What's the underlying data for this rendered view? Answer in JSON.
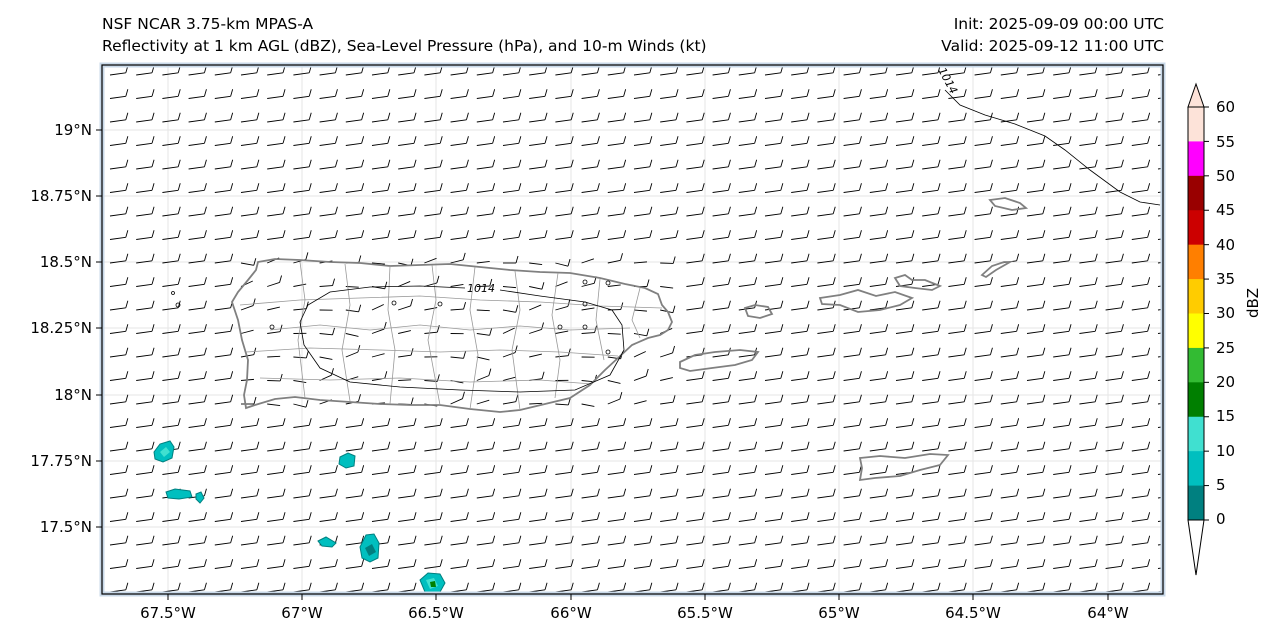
{
  "title": {
    "line1": "NSF NCAR 3.75-km MPAS-A",
    "line2": "Reflectivity at 1 km AGL (dBZ), Sea-Level Pressure (hPa), and 10-m Winds (kt)",
    "init": "Init: 2025-09-09 00:00 UTC",
    "valid": "Valid: 2025-09-12 11:00 UTC"
  },
  "map": {
    "lat_labels": [
      "19°N",
      "18.75°N",
      "18.5°N",
      "18.25°N",
      "18°N",
      "17.75°N",
      "17.5°N"
    ],
    "lon_labels": [
      "67.5°W",
      "67°W",
      "66.5°W",
      "66°W",
      "65.5°W",
      "65°W",
      "64.5°W",
      "64°W"
    ],
    "lon_range": [
      -67.75,
      -63.8
    ],
    "lat_range": [
      17.3,
      19.25
    ],
    "isobar_label_1": "1014",
    "isobar_label_2": "1014",
    "colors": {
      "coastline": "#808080",
      "isobar": "#000000",
      "frame_inner": "#c8d8e8"
    }
  },
  "colorbar": {
    "title": "dBZ",
    "ticks": [
      "60",
      "55",
      "50",
      "45",
      "40",
      "35",
      "30",
      "25",
      "20",
      "15",
      "10",
      "5",
      "0"
    ],
    "colors": [
      "#fde3d9",
      "#ff00ff",
      "#990000",
      "#cc0000",
      "#ff7f00",
      "#ffcc00",
      "#ffff00",
      "#33bb33",
      "#007f00",
      "#40e0d0",
      "#00bfbf",
      "#008080"
    ]
  }
}
